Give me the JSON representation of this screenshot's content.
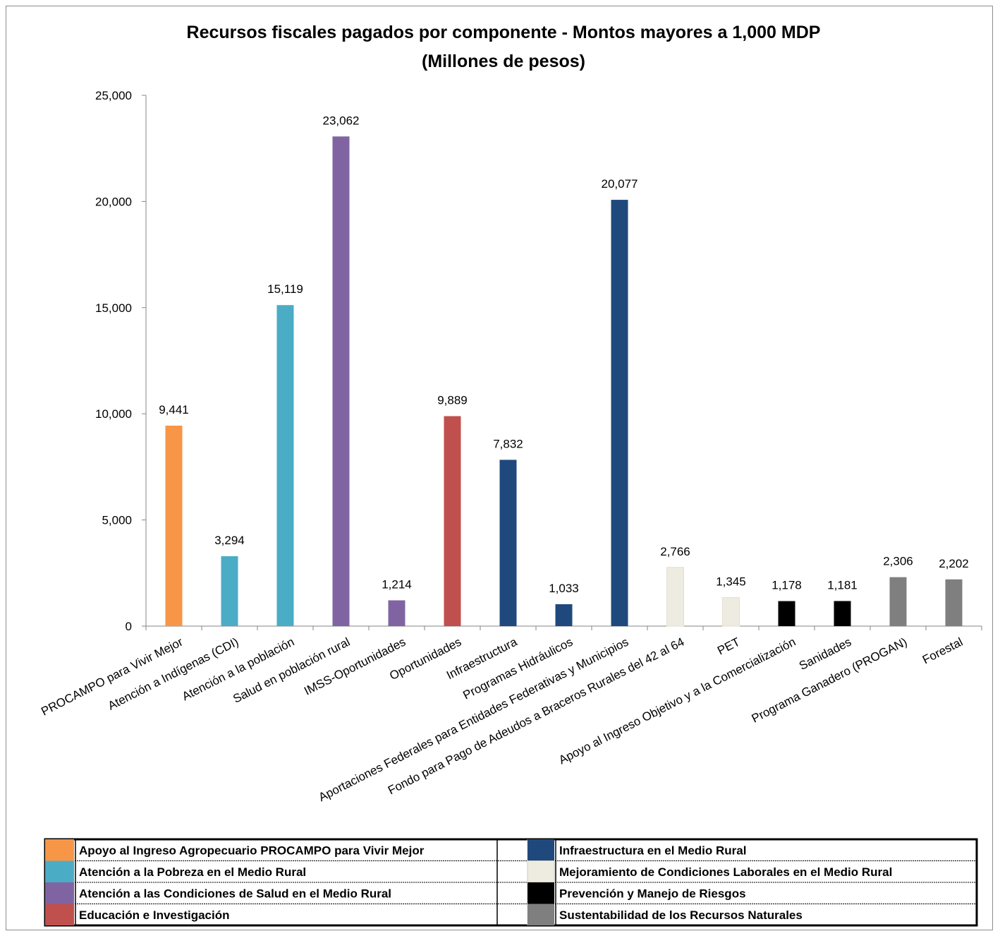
{
  "chart_data": {
    "type": "bar",
    "title": "Recursos fiscales pagados por componente - Montos mayores a 1,000 MDP",
    "subtitle": "(Millones de pesos)",
    "xlabel": "",
    "ylabel": "",
    "ylim": [
      0,
      25000
    ],
    "yticks": [
      0,
      5000,
      10000,
      15000,
      20000,
      25000
    ],
    "ytick_labels": [
      "0",
      "5,000",
      "10,000",
      "15,000",
      "20,000",
      "25,000"
    ],
    "grid": false,
    "legend_position": "bottom",
    "categories": [
      "PROCAMPO para Vivir Mejor",
      "Atención a Indígenas (CDI)",
      "Atención a la población",
      "Salud en población rural",
      "IMSS-Oportunidades",
      "Oportunidades",
      "Infraestructura",
      "Programas Hidráulicos",
      "Aportaciones Federales para Entidades Federativas y Municipios",
      "Fondo para Pago de Adeudos a Braceros Rurales del 42 al 64",
      "PET",
      "Apoyo al Ingreso Objetivo y a la Comercialización",
      "Sanidades",
      "Programa Ganadero (PROGAN)",
      "Forestal"
    ],
    "values": [
      9441,
      3294,
      15119,
      23062,
      1214,
      9889,
      7832,
      1033,
      20077,
      2766,
      1345,
      1178,
      1181,
      2306,
      2202
    ],
    "value_labels": [
      "9,441",
      "3,294",
      "15,119",
      "23,062",
      "1,214",
      "9,889",
      "7,832",
      "1,033",
      "20,077",
      "2,766",
      "1,345",
      "1,178",
      "1,181",
      "2,306",
      "2,202"
    ],
    "bar_group": [
      0,
      1,
      1,
      2,
      2,
      3,
      4,
      4,
      4,
      5,
      5,
      6,
      6,
      7,
      7
    ],
    "legend": [
      {
        "label": "Apoyo al Ingreso Agropecuario PROCAMPO para Vivir Mejor",
        "color": "#F79646"
      },
      {
        "label": "Atención a la Pobreza en el Medio Rural",
        "color": "#4BACC6"
      },
      {
        "label": "Atención a las Condiciones de Salud en el Medio Rural",
        "color": "#8064A2"
      },
      {
        "label": "Educación e Investigación",
        "color": "#C0504D"
      },
      {
        "label": "Infraestructura en el Medio Rural",
        "color": "#1F497D"
      },
      {
        "label": "Mejoramiento de Condiciones Laborales en el Medio Rural",
        "color": "#EEECE1"
      },
      {
        "label": "Prevención y Manejo de Riesgos",
        "color": "#000000"
      },
      {
        "label": "Sustentabilidad de los Recursos Naturales",
        "color": "#7F7F7F"
      }
    ]
  }
}
